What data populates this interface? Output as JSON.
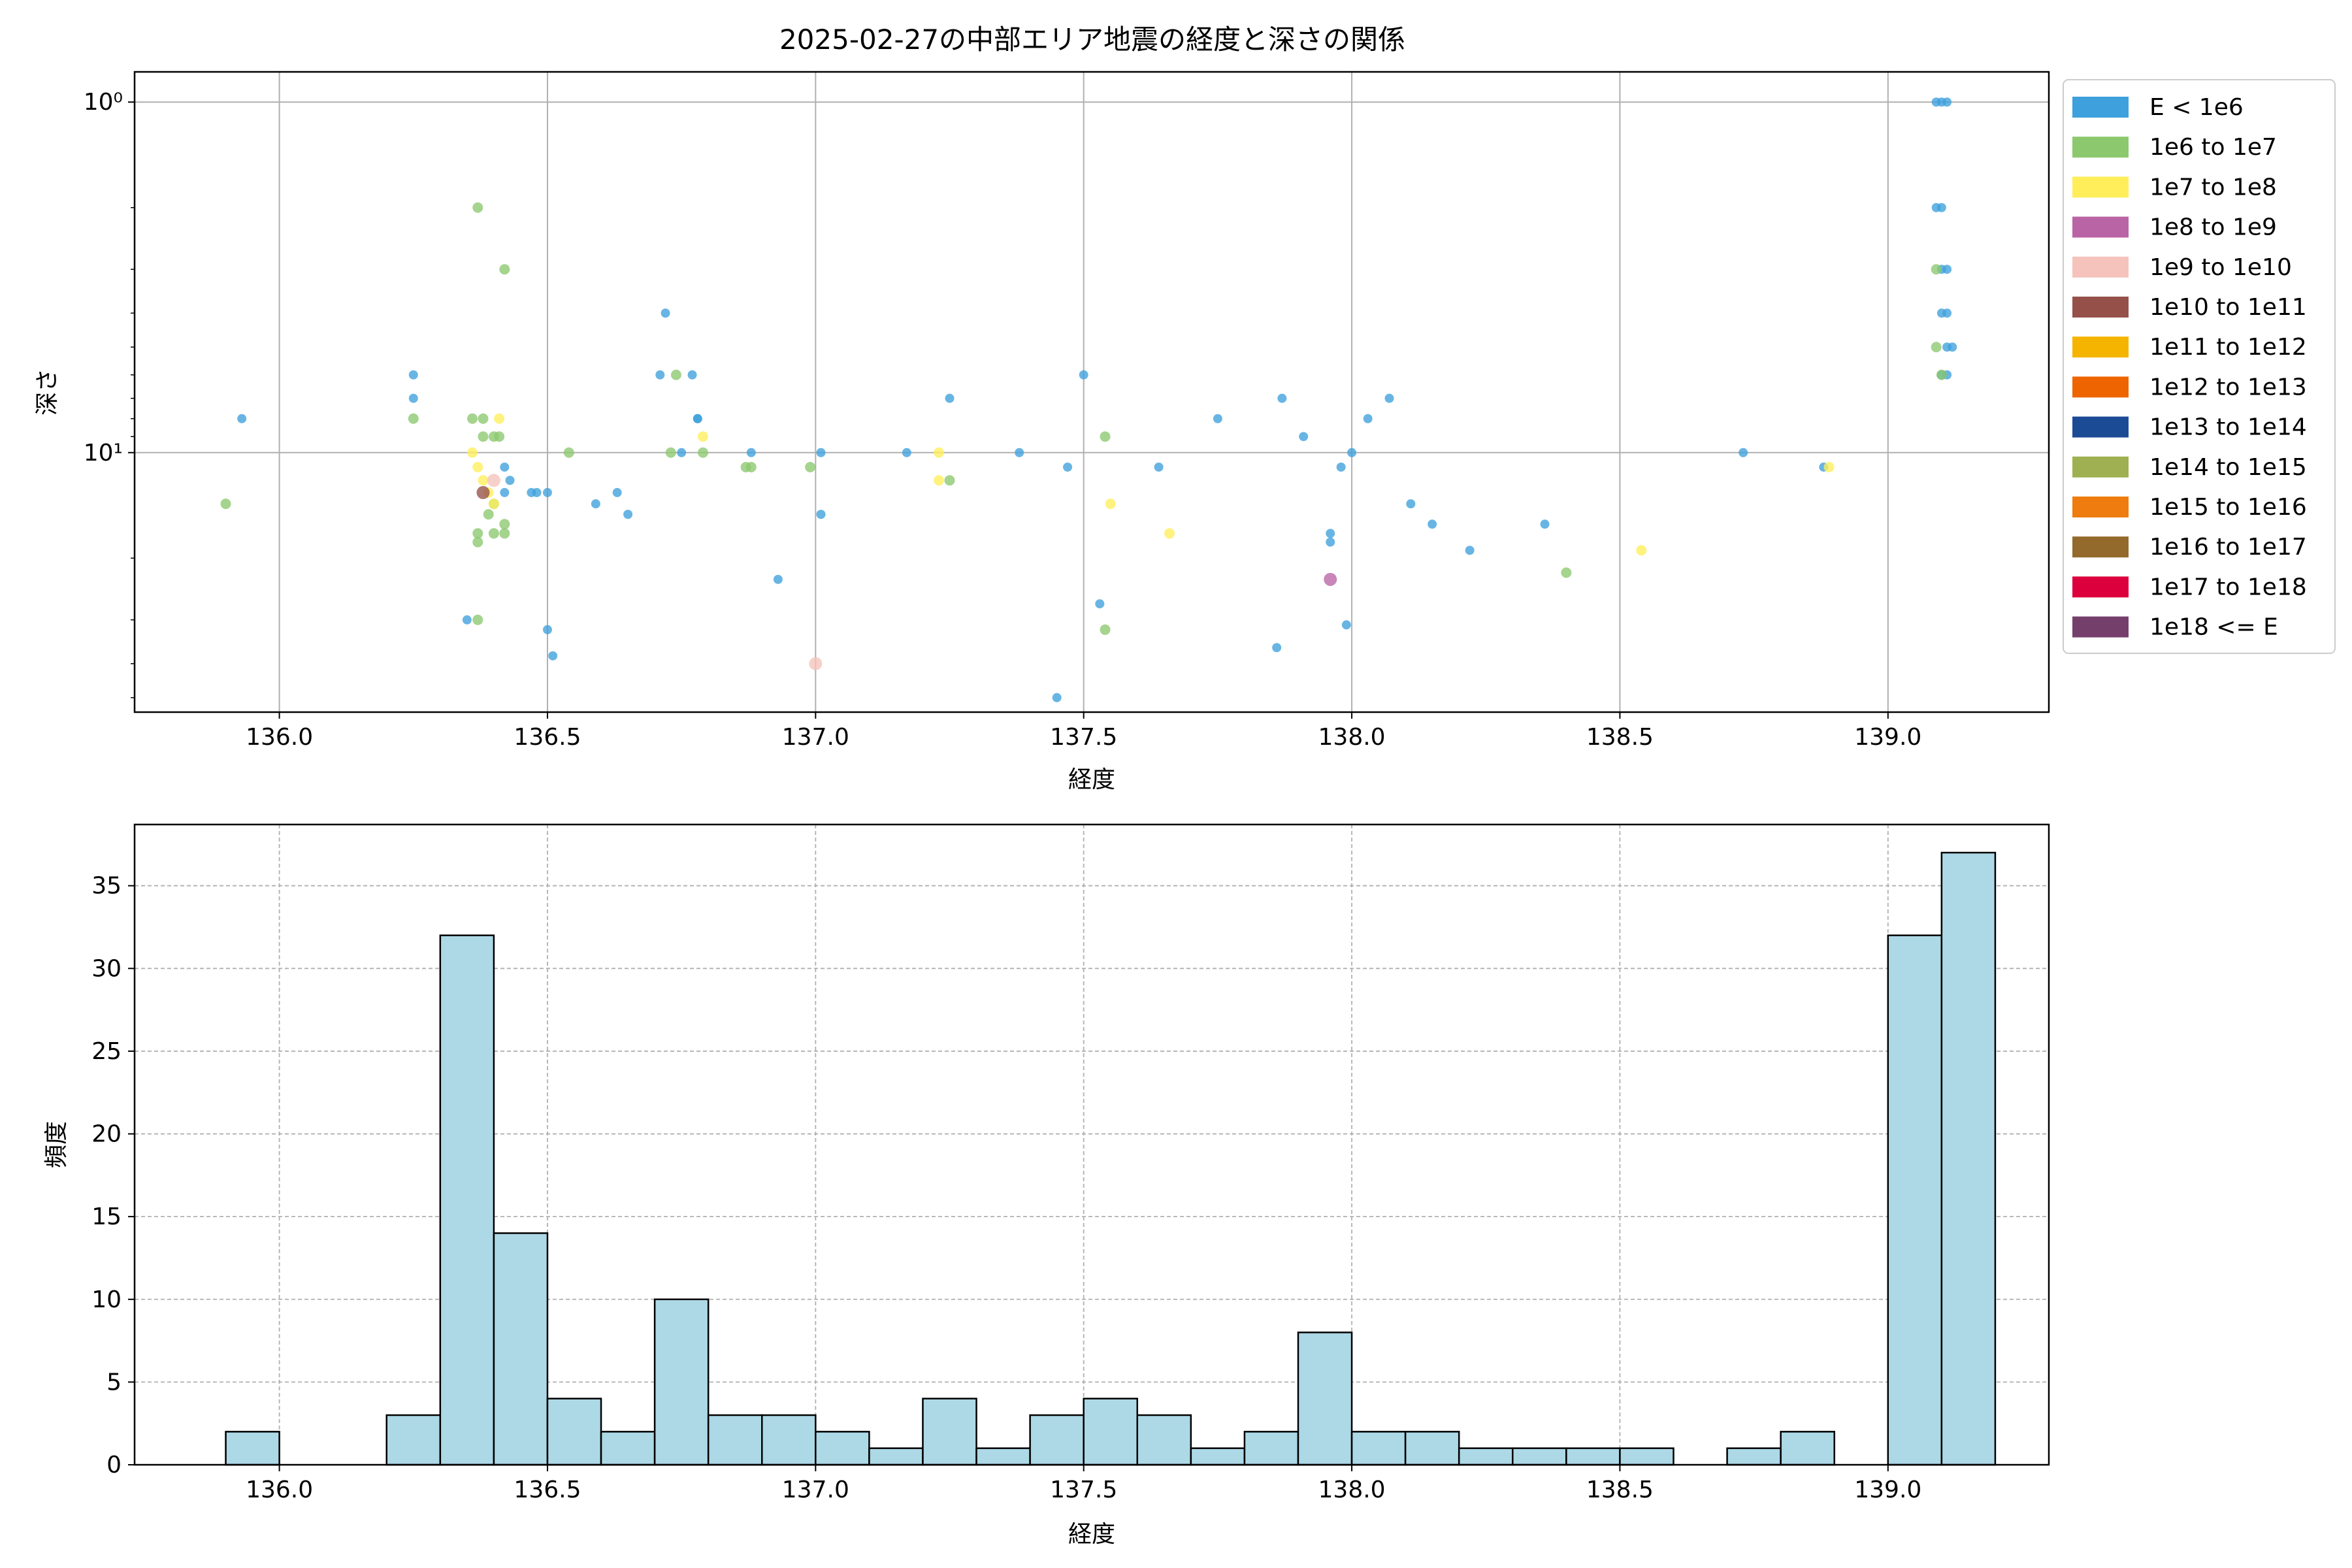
{
  "chart_data": [
    {
      "type": "scatter",
      "title": "2025-02-27の中部エリア地震の経度と深さの関係",
      "xlabel": "経度",
      "ylabel": "深さ",
      "xlim": [
        135.73,
        139.3
      ],
      "ylim": [
        55,
        0.82
      ],
      "y_scale": "log",
      "y_inverted": true,
      "grid": true,
      "legend_position": "outside-right",
      "x_ticks": [
        136.0,
        136.5,
        137.0,
        137.5,
        138.0,
        138.5,
        139.0
      ],
      "x_tick_labels": [
        "136.0",
        "136.5",
        "137.0",
        "137.5",
        "138.0",
        "138.5",
        "139.0"
      ],
      "y_ticks": [
        1,
        10
      ],
      "y_tick_labels": [
        "10⁰",
        "10¹"
      ],
      "legend": [
        {
          "label": "E < 1e6",
          "color": "#3ea0dc"
        },
        {
          "label": "1e6 to 1e7",
          "color": "#8cc86e"
        },
        {
          "label": "1e7 to 1e8",
          "color": "#ffee5a"
        },
        {
          "label": "1e8 to 1e9",
          "color": "#b964a5"
        },
        {
          "label": "1e9 to 1e10",
          "color": "#f5c3bb"
        },
        {
          "label": "1e10 to 1e11",
          "color": "#955049"
        },
        {
          "label": "1e11 to 1e12",
          "color": "#f5b400"
        },
        {
          "label": "1e12 to 1e13",
          "color": "#ee6400"
        },
        {
          "label": "1e13 to 1e14",
          "color": "#1c4b96"
        },
        {
          "label": "1e14 to 1e15",
          "color": "#9eb051"
        },
        {
          "label": "1e15 to 1e16",
          "color": "#ee7c0e"
        },
        {
          "label": "1e16 to 1e17",
          "color": "#936a2b"
        },
        {
          "label": "1e17 to 1e18",
          "color": "#dc003c"
        },
        {
          "label": "1e18 <= E",
          "color": "#753f6c"
        }
      ],
      "series": [
        {
          "energy_class": 0,
          "points": [
            [
              135.93,
              8
            ],
            [
              136.25,
              6
            ],
            [
              136.25,
              7
            ],
            [
              136.35,
              30
            ],
            [
              136.42,
              11
            ],
            [
              136.42,
              13
            ],
            [
              136.43,
              12
            ],
            [
              136.47,
              13
            ],
            [
              136.48,
              13
            ],
            [
              136.5,
              13
            ],
            [
              136.5,
              32
            ],
            [
              136.51,
              38
            ],
            [
              136.59,
              14
            ],
            [
              136.63,
              13
            ],
            [
              136.65,
              15
            ],
            [
              136.71,
              6
            ],
            [
              136.72,
              4
            ],
            [
              136.75,
              10
            ],
            [
              136.77,
              6
            ],
            [
              136.78,
              8
            ],
            [
              136.78,
              8
            ],
            [
              136.88,
              10
            ],
            [
              136.93,
              23
            ],
            [
              137.01,
              10
            ],
            [
              137.01,
              15
            ],
            [
              137.17,
              10
            ],
            [
              137.25,
              7
            ],
            [
              137.38,
              10
            ],
            [
              137.45,
              50
            ],
            [
              137.47,
              11
            ],
            [
              137.5,
              6
            ],
            [
              137.53,
              27
            ],
            [
              137.64,
              11
            ],
            [
              137.75,
              8
            ],
            [
              137.87,
              7
            ],
            [
              137.91,
              9
            ],
            [
              137.96,
              17
            ],
            [
              137.96,
              18
            ],
            [
              137.98,
              11
            ],
            [
              137.99,
              31
            ],
            [
              137.86,
              36
            ],
            [
              138.0,
              10
            ],
            [
              138.03,
              8
            ],
            [
              138.07,
              7
            ],
            [
              138.11,
              14
            ],
            [
              138.15,
              16
            ],
            [
              138.22,
              19
            ],
            [
              138.36,
              16
            ],
            [
              138.73,
              10
            ],
            [
              138.88,
              11
            ],
            [
              139.09,
              1
            ],
            [
              139.1,
              1
            ],
            [
              139.11,
              1
            ],
            [
              139.09,
              2
            ],
            [
              139.1,
              2
            ],
            [
              139.1,
              3
            ],
            [
              139.11,
              3
            ],
            [
              139.1,
              4
            ],
            [
              139.11,
              4
            ],
            [
              139.11,
              5
            ],
            [
              139.12,
              5
            ],
            [
              139.11,
              6
            ],
            [
              139.1,
              6
            ]
          ]
        },
        {
          "energy_class": 1,
          "points": [
            [
              135.9,
              14
            ],
            [
              136.25,
              8
            ],
            [
              136.36,
              8
            ],
            [
              136.37,
              2
            ],
            [
              136.38,
              8
            ],
            [
              136.38,
              9
            ],
            [
              136.4,
              9
            ],
            [
              136.4,
              14
            ],
            [
              136.41,
              9
            ],
            [
              136.42,
              3
            ],
            [
              136.37,
              17
            ],
            [
              136.42,
              16
            ],
            [
              136.42,
              17
            ],
            [
              136.37,
              18
            ],
            [
              136.4,
              17
            ],
            [
              136.37,
              30
            ],
            [
              136.39,
              15
            ],
            [
              136.54,
              10
            ],
            [
              136.73,
              10
            ],
            [
              136.74,
              6
            ],
            [
              136.79,
              10
            ],
            [
              136.87,
              11
            ],
            [
              136.88,
              11
            ],
            [
              136.99,
              11
            ],
            [
              137.25,
              12
            ],
            [
              137.54,
              9
            ],
            [
              137.54,
              32
            ],
            [
              138.4,
              22
            ],
            [
              139.09,
              3
            ],
            [
              139.09,
              5
            ],
            [
              139.1,
              6
            ]
          ]
        },
        {
          "energy_class": 2,
          "points": [
            [
              136.36,
              10
            ],
            [
              136.37,
              11
            ],
            [
              136.38,
              12
            ],
            [
              136.39,
              13
            ],
            [
              136.4,
              14
            ],
            [
              136.41,
              8
            ],
            [
              136.79,
              9
            ],
            [
              137.23,
              10
            ],
            [
              137.23,
              12
            ],
            [
              137.55,
              14
            ],
            [
              137.66,
              17
            ],
            [
              138.54,
              19
            ],
            [
              138.89,
              11
            ]
          ]
        },
        {
          "energy_class": 3,
          "points": [
            [
              137.96,
              23
            ]
          ]
        },
        {
          "energy_class": 4,
          "points": [
            [
              136.4,
              12
            ],
            [
              137.0,
              40
            ]
          ]
        },
        {
          "energy_class": 5,
          "points": [
            [
              136.38,
              13
            ]
          ]
        }
      ]
    },
    {
      "type": "bar",
      "xlabel": "経度",
      "ylabel": "頻度",
      "xlim": [
        135.73,
        139.3
      ],
      "ylim": [
        0,
        38.7
      ],
      "grid": true,
      "x_ticks": [
        136.0,
        136.5,
        137.0,
        137.5,
        138.0,
        138.5,
        139.0
      ],
      "x_tick_labels": [
        "136.0",
        "136.5",
        "137.0",
        "137.5",
        "138.0",
        "138.5",
        "139.0"
      ],
      "y_ticks": [
        0,
        5,
        10,
        15,
        20,
        25,
        30,
        35
      ],
      "y_tick_labels": [
        "0",
        "5",
        "10",
        "15",
        "20",
        "25",
        "30",
        "35"
      ],
      "bar_color": "#add8e6",
      "bin_start": 135.9,
      "bin_width": 0.1,
      "values": [
        2,
        0,
        0,
        3,
        32,
        14,
        4,
        2,
        10,
        3,
        3,
        2,
        1,
        4,
        1,
        3,
        4,
        3,
        1,
        2,
        8,
        2,
        2,
        1,
        1,
        1,
        1,
        0,
        1,
        2,
        0,
        32,
        37
      ]
    }
  ]
}
